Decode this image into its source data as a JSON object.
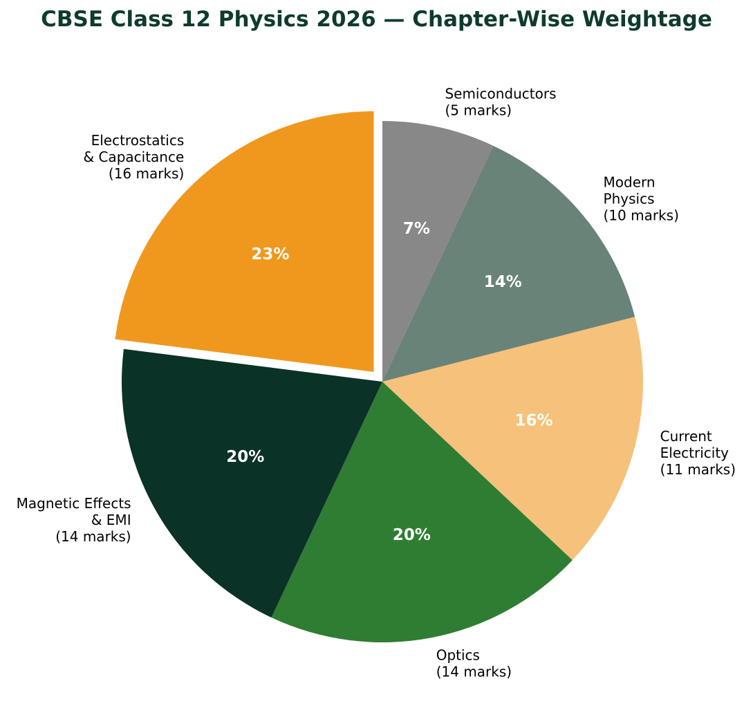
{
  "title": "CBSE Class 12 Physics 2026 — Chapter-Wise Weightage",
  "title_color": "#0e3b2e",
  "background_color": "#ffffff",
  "chart_data": {
    "type": "pie",
    "title": "CBSE Class 12 Physics 2026 — Chapter-Wise Weightage",
    "start_angle_deg": 90,
    "direction": "clockwise",
    "label_distance": 1.1,
    "pct_distance": 0.6,
    "legend_position": "none",
    "grid": false,
    "text_colors": {
      "outside_labels": "#000000",
      "percent_labels": "#ffffff"
    },
    "slices": [
      {
        "id": "semiconductors",
        "chapter": "Semiconductors",
        "marks": 5,
        "percent": 7,
        "pct_label": "7%",
        "label_lines": [
          "Semiconductors",
          "(5 marks)"
        ],
        "color": "#888888",
        "explode": 0
      },
      {
        "id": "modern-physics",
        "chapter": "Modern Physics",
        "marks": 10,
        "percent": 14,
        "pct_label": "14%",
        "label_lines": [
          "Modern",
          "Physics",
          "(10 marks)"
        ],
        "color": "#6A8379",
        "explode": 0
      },
      {
        "id": "current-electricity",
        "chapter": "Current Electricity",
        "marks": 11,
        "percent": 16,
        "pct_label": "16%",
        "label_lines": [
          "Current",
          "Electricity",
          "(11 marks)"
        ],
        "color": "#F6C17A",
        "explode": 0
      },
      {
        "id": "optics",
        "chapter": "Optics",
        "marks": 14,
        "percent": 20,
        "pct_label": "20%",
        "label_lines": [
          "Optics",
          "(14 marks)"
        ],
        "color": "#2F7D32",
        "explode": 0
      },
      {
        "id": "magnetic-effects-emi",
        "chapter": "Magnetic Effects & EMI",
        "marks": 14,
        "percent": 20,
        "pct_label": "20%",
        "label_lines": [
          "Magnetic Effects",
          "& EMI",
          "(14 marks)"
        ],
        "color": "#0A3227",
        "explode": 0
      },
      {
        "id": "electrostatics-capacitance",
        "chapter": "Electrostatics & Capacitance",
        "marks": 16,
        "percent": 23,
        "pct_label": "23%",
        "label_lines": [
          "Electrostatics",
          "& Capacitance",
          "(16 marks)"
        ],
        "color": "#F0981E",
        "explode": 0.05
      }
    ]
  }
}
